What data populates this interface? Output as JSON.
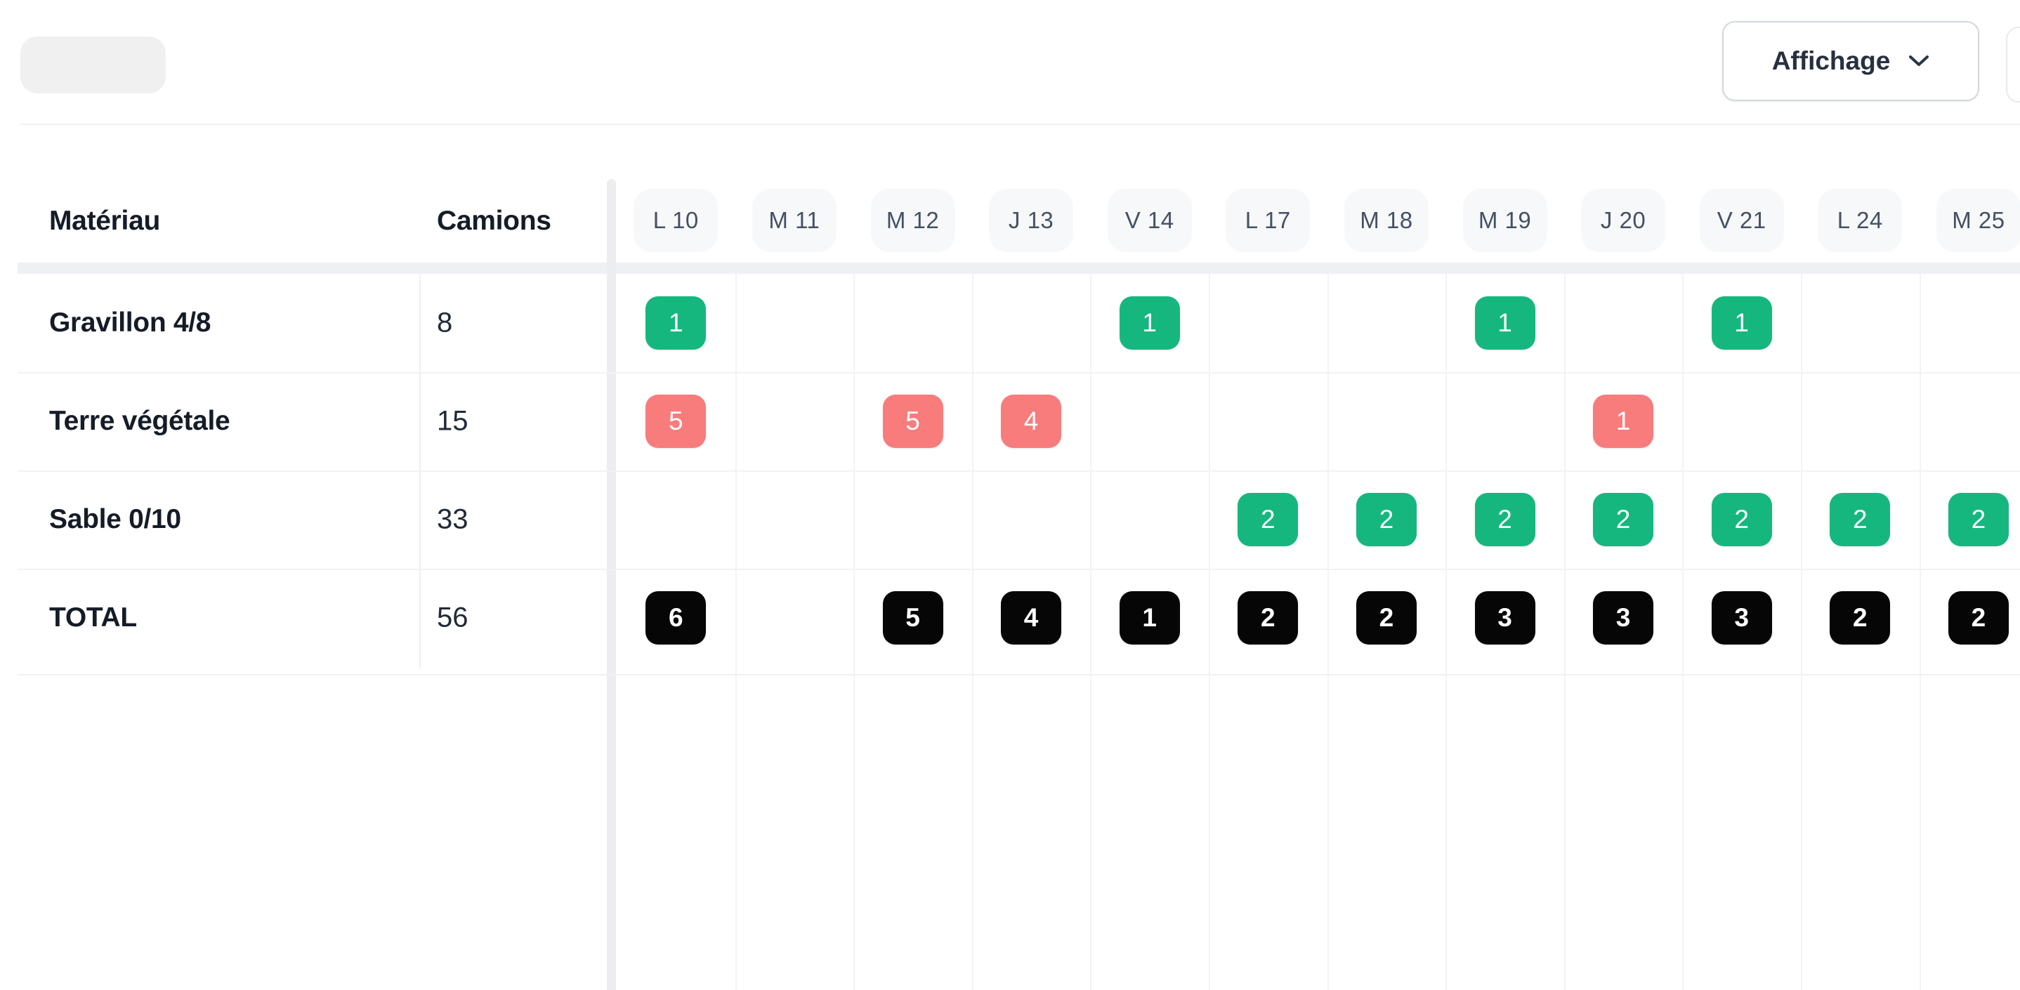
{
  "toolbar": {
    "display_button_label": "Affichage"
  },
  "table": {
    "headers": {
      "material": "Matériau",
      "trucks": "Camions"
    },
    "day_columns": [
      "L 10",
      "M 11",
      "M 12",
      "J 13",
      "V 14",
      "L 17",
      "M 18",
      "M 19",
      "J 20",
      "V 21",
      "L 24",
      "M 25"
    ],
    "rows": [
      {
        "material": "Gravillon 4/8",
        "trucks": "8",
        "badge_color": "green",
        "is_total": false,
        "cells": [
          "1",
          "",
          "",
          "",
          "1",
          "",
          "",
          "1",
          "",
          "1",
          "",
          ""
        ]
      },
      {
        "material": "Terre végétale",
        "trucks": "15",
        "badge_color": "red",
        "is_total": false,
        "cells": [
          "5",
          "",
          "5",
          "4",
          "",
          "",
          "",
          "",
          "1",
          "",
          "",
          ""
        ]
      },
      {
        "material": "Sable 0/10",
        "trucks": "33",
        "badge_color": "green",
        "is_total": false,
        "cells": [
          "",
          "",
          "",
          "",
          "",
          "2",
          "2",
          "2",
          "2",
          "2",
          "2",
          "2"
        ]
      },
      {
        "material": "TOTAL",
        "trucks": "56",
        "badge_color": "black",
        "is_total": true,
        "cells": [
          "6",
          "",
          "5",
          "4",
          "1",
          "2",
          "2",
          "3",
          "3",
          "3",
          "2",
          "2"
        ]
      }
    ]
  },
  "colors": {
    "badge_green": "#16B77F",
    "badge_red": "#F87C7C",
    "badge_black": "#060606",
    "day_pill_bg": "#F7F8FA",
    "header_text": "#151C28"
  },
  "icons": {
    "display_button_chevron": "chevron-down"
  }
}
